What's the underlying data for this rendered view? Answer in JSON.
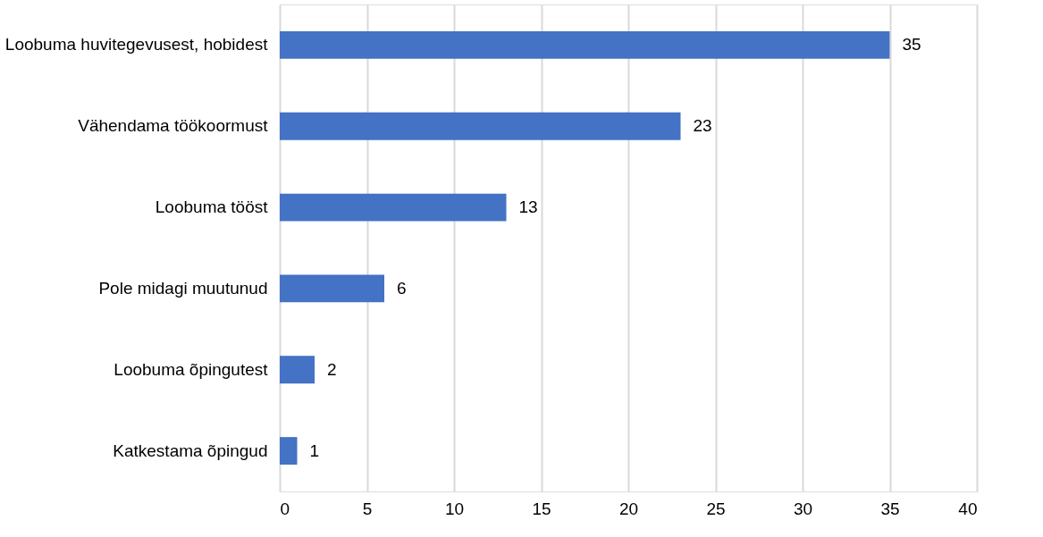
{
  "chart_data": {
    "type": "bar",
    "orientation": "horizontal",
    "categories": [
      "Loobuma huvitegevusest, hobidest",
      "Vähendama töökoormust",
      "Loobuma tööst",
      "Pole midagi muutunud",
      "Loobuma õpingutest",
      "Katkestama õpingud"
    ],
    "values": [
      35,
      23,
      13,
      6,
      2,
      1
    ],
    "color": "#4472c4",
    "xlim": [
      0,
      40
    ],
    "xticks": [
      0,
      5,
      10,
      15,
      20,
      25,
      30,
      35,
      40
    ],
    "grid": "x",
    "data_labels": true
  }
}
